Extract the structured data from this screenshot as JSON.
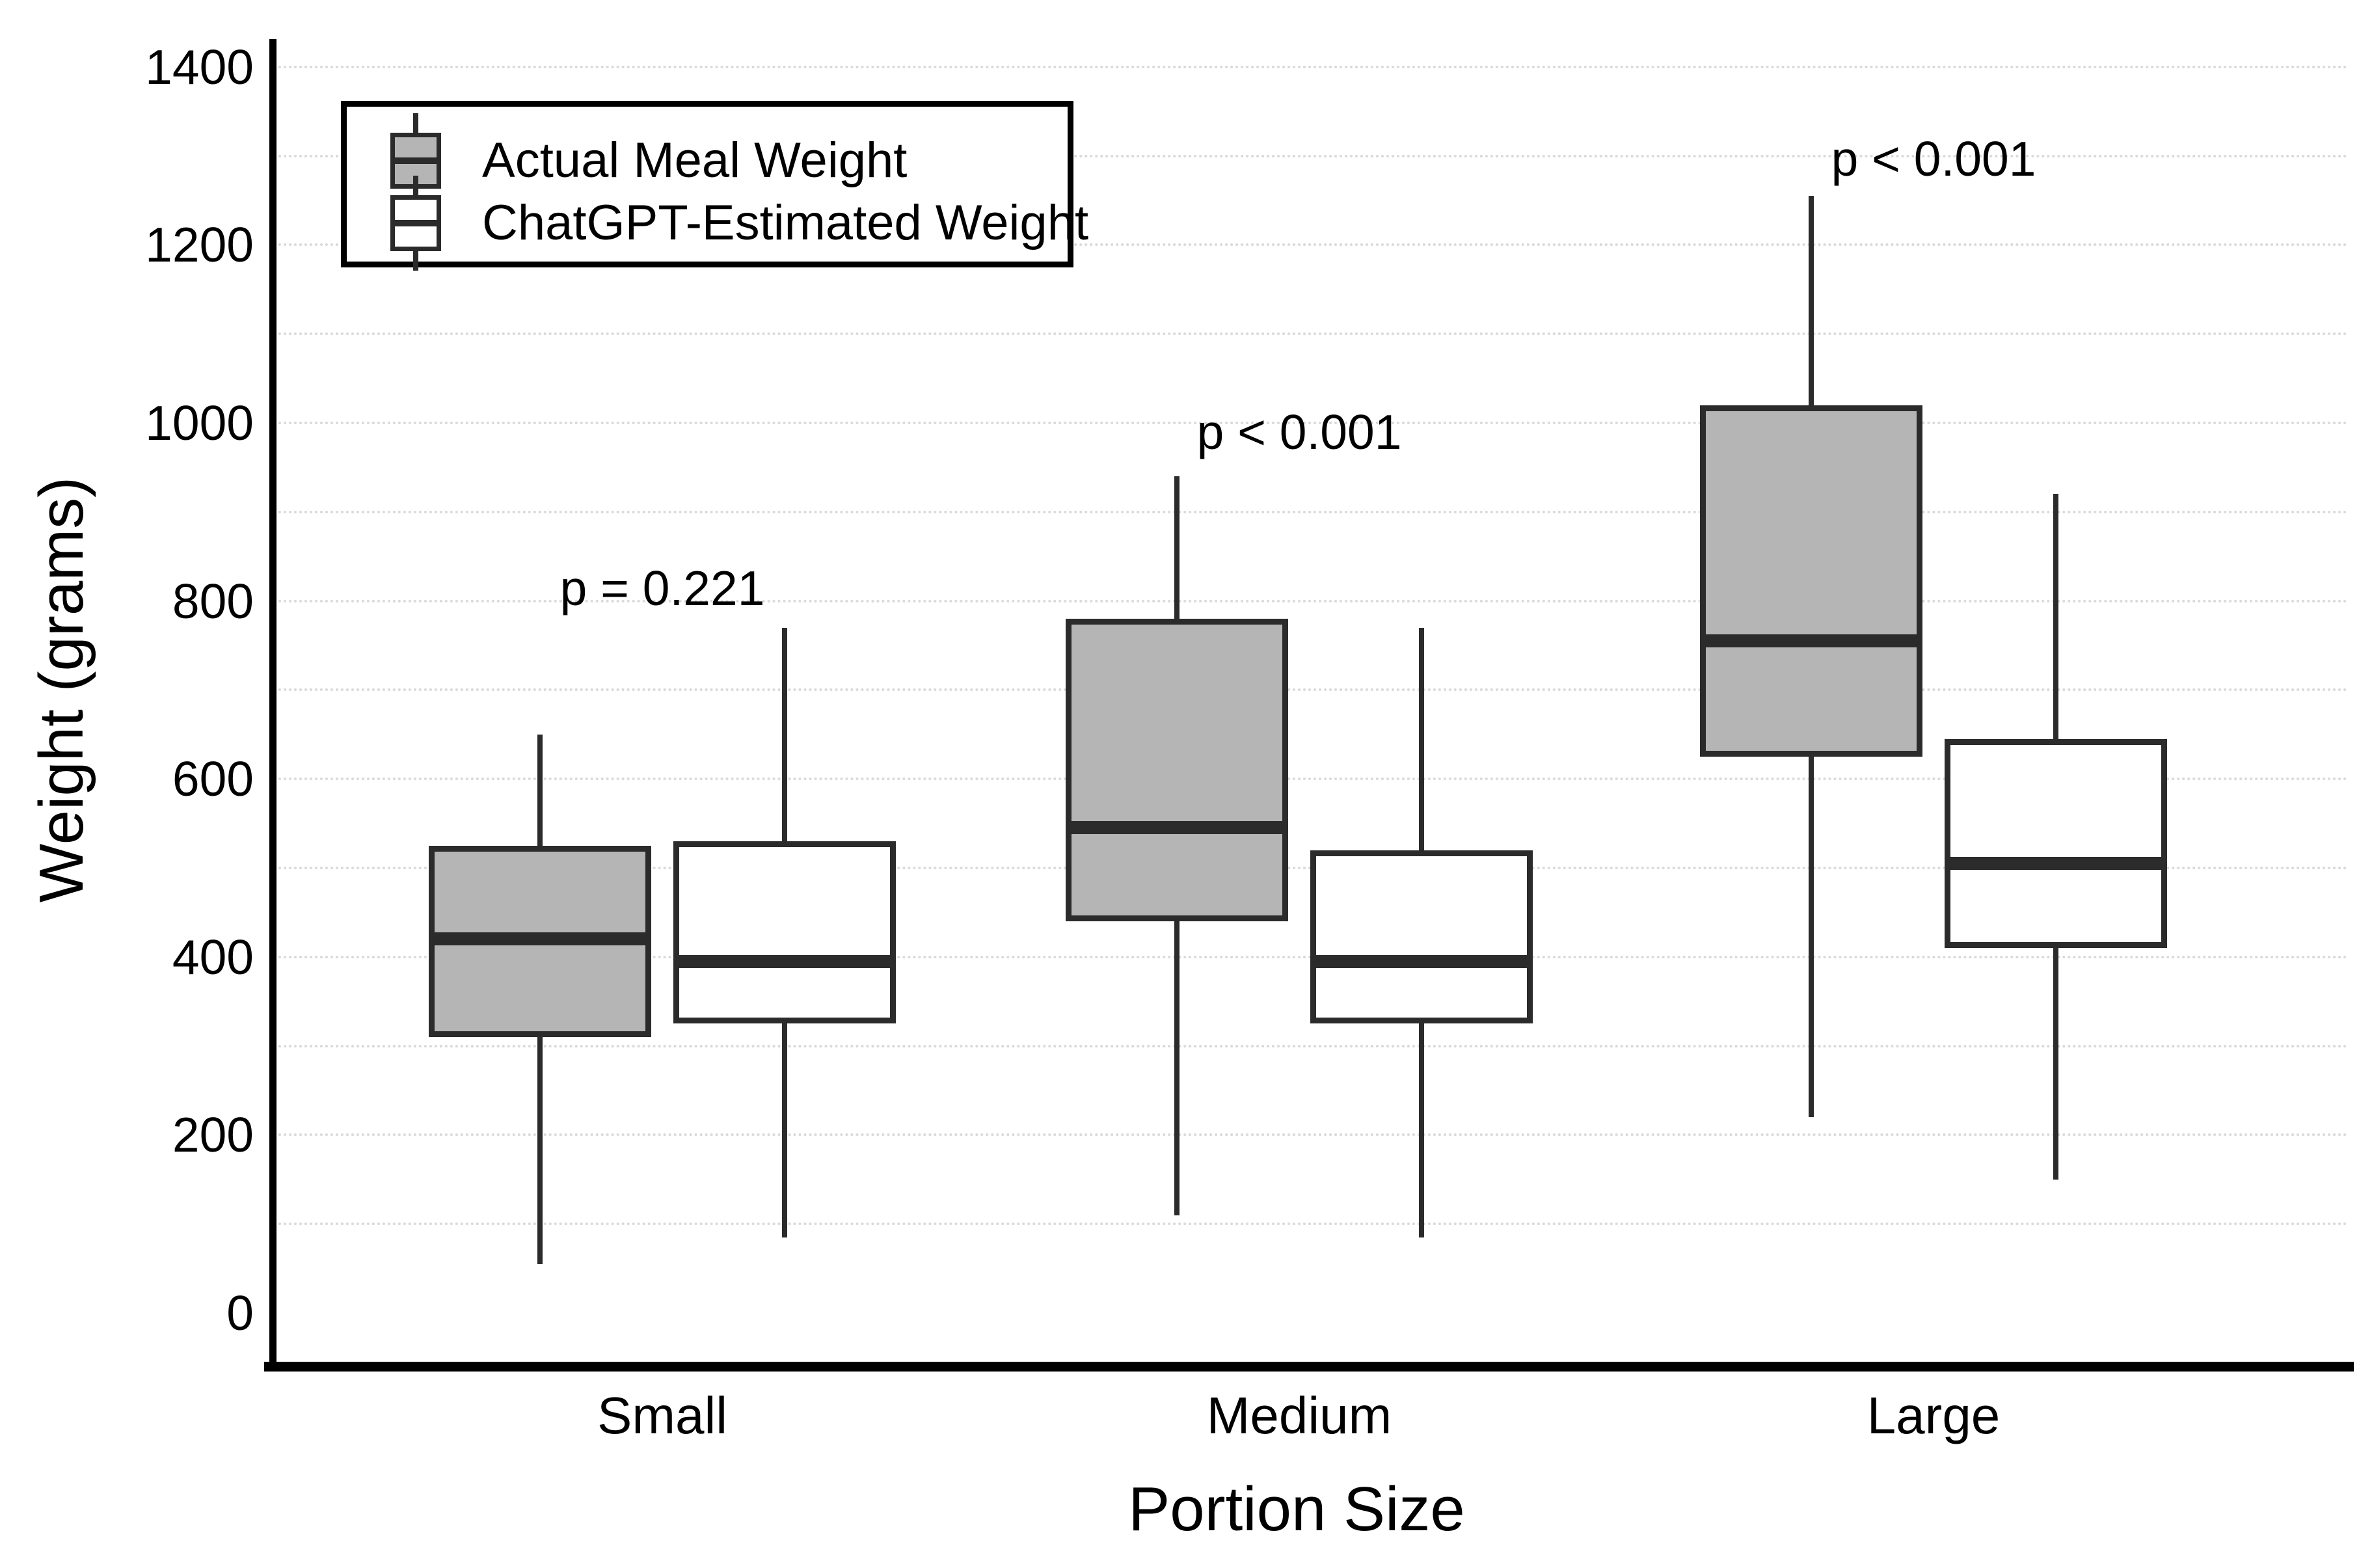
{
  "chart_data": {
    "type": "boxplot",
    "title": "",
    "xlabel": "Portion Size",
    "ylabel": "Weight (grams)",
    "categories": [
      "Small",
      "Medium",
      "Large"
    ],
    "y_ticks": [
      0,
      200,
      400,
      600,
      800,
      1000,
      1200,
      1400
    ],
    "ylim": [
      0,
      1400
    ],
    "grid": "horizontal, minor lines every 100, light dotted",
    "legend_position": "top-left",
    "series": [
      {
        "name": "Actual Meal Weight",
        "fill": "#b5b5b5",
        "boxes": [
          {
            "category": "Small",
            "whisker_low": 55,
            "q1": 310,
            "median": 420,
            "q3": 525,
            "whisker_high": 650
          },
          {
            "category": "Medium",
            "whisker_low": 110,
            "q1": 440,
            "median": 545,
            "q3": 780,
            "whisker_high": 940
          },
          {
            "category": "Large",
            "whisker_low": 220,
            "q1": 625,
            "median": 755,
            "q3": 1020,
            "whisker_high": 1255
          }
        ]
      },
      {
        "name": "ChatGPT-Estimated Weight",
        "fill": "#ffffff",
        "boxes": [
          {
            "category": "Small",
            "whisker_low": 85,
            "q1": 325,
            "median": 395,
            "q3": 530,
            "whisker_high": 770
          },
          {
            "category": "Medium",
            "whisker_low": 85,
            "q1": 325,
            "median": 395,
            "q3": 520,
            "whisker_high": 770
          },
          {
            "category": "Large",
            "whisker_low": 150,
            "q1": 410,
            "median": 505,
            "q3": 645,
            "whisker_high": 920
          }
        ]
      }
    ],
    "annotations": [
      {
        "category": "Small",
        "text": "p = 0.221"
      },
      {
        "category": "Medium",
        "text": "p < 0.001"
      },
      {
        "category": "Large",
        "text": "p < 0.001"
      }
    ]
  },
  "colors": {
    "box_border": "#2b2b2b",
    "median": "#2b2b2b",
    "whisker": "#2b2b2b",
    "gridline": "#d9d9d9",
    "axis": "#000000",
    "text": "#000000",
    "actual_fill": "#b5b5b5",
    "estimated_fill": "#ffffff",
    "background": "#ffffff"
  }
}
